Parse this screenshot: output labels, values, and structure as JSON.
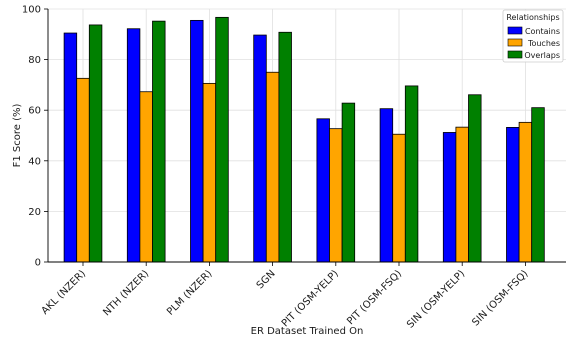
{
  "chart_data": {
    "type": "bar",
    "title": "",
    "xlabel": "ER Dataset Trained On",
    "ylabel": "F1 Score (%)",
    "ylim": [
      0,
      100
    ],
    "yticks": [
      0,
      20,
      40,
      60,
      80,
      100
    ],
    "grid": true,
    "legend": {
      "title": "Relationships",
      "placement": "top-right"
    },
    "categories": [
      "AKL (NZER)",
      "NTH (NZER)",
      "PLM (NZER)",
      "SGN",
      "PIT (OSM-YELP)",
      "PIT (OSM-FSQ)",
      "SIN (OSM-YELP)",
      "SIN (OSM-FSQ)"
    ],
    "series": [
      {
        "name": "Contains",
        "color": "#0000ff",
        "values": [
          90.5,
          92.2,
          95.5,
          89.7,
          56.6,
          60.6,
          51.2,
          53.2
        ]
      },
      {
        "name": "Touches",
        "color": "#ffa500",
        "values": [
          72.6,
          67.3,
          70.6,
          75.0,
          52.7,
          50.5,
          53.3,
          55.2
        ]
      },
      {
        "name": "Overlaps",
        "color": "#008000",
        "values": [
          93.7,
          95.2,
          96.7,
          90.8,
          62.8,
          69.6,
          66.1,
          61.0
        ]
      }
    ]
  }
}
